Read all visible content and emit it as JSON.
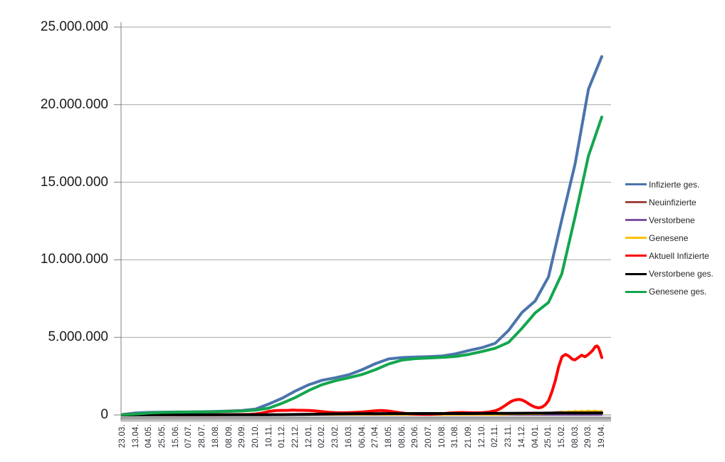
{
  "window": {
    "background_color": "#FFFFFF"
  },
  "chart_data": {
    "type": "line",
    "title": "",
    "xlabel": "",
    "ylabel": "",
    "unit": "persons (values stored in millions)",
    "grid": true,
    "legend_position": "right",
    "y_max_millions": 25,
    "y_tick_step_millions": 5,
    "y_tick_labels": [
      "25.000.000",
      "20.000.000",
      "15.000.000",
      "10.000.000",
      "5.000.000",
      "0"
    ],
    "x_tick_labels": [
      "23.03.",
      "13.04.",
      "04.05.",
      "25.05.",
      "15.06.",
      "07.07.",
      "28.07.",
      "18.08.",
      "08.09.",
      "29.09.",
      "20.10.",
      "10.11.",
      "01.12.",
      "22.12.",
      "12.01.",
      "02.02.",
      "23.02.",
      "16.03.",
      "06.04.",
      "27.04.",
      "18.05.",
      "08.06.",
      "29.06.",
      "20.07.",
      "10.08.",
      "31.08.",
      "21.09.",
      "12.10.",
      "02.11.",
      "23.11.",
      "14.12.",
      "04.01.",
      "25.01.",
      "15.02.",
      "08.03.",
      "29.03.",
      "19.04."
    ],
    "decor": {
      "grid_color": "#A6A6A6",
      "axis_color": "#808080",
      "tick_color": "#808080",
      "axis_band_gradient_top": "#8A8A8A",
      "axis_band_gradient_bottom": "#D9D9D9"
    },
    "series": [
      {
        "name": "Infizierte ges.",
        "color": "#4A74AC",
        "width": 4,
        "values_millions": [
          0.03,
          0.13,
          0.165,
          0.18,
          0.187,
          0.197,
          0.207,
          0.225,
          0.254,
          0.29,
          0.38,
          0.71,
          1.08,
          1.55,
          1.95,
          2.24,
          2.4,
          2.59,
          2.92,
          3.31,
          3.61,
          3.7,
          3.73,
          3.76,
          3.8,
          3.94,
          4.15,
          4.34,
          4.62,
          5.45,
          6.6,
          7.35,
          8.9,
          12.6,
          16.2,
          21.0,
          23.1
        ]
      },
      {
        "name": "Neuinfizierte",
        "color": "#9E473F",
        "width": 2.5,
        "points_millions": [
          [
            0,
            0.004
          ],
          [
            0.028,
            0.005
          ],
          [
            0.056,
            0.002
          ],
          [
            0.111,
            0.001
          ],
          [
            0.194,
            0.001
          ],
          [
            0.25,
            0.002
          ],
          [
            0.278,
            0.008
          ],
          [
            0.306,
            0.019
          ],
          [
            0.333,
            0.024
          ],
          [
            0.361,
            0.026
          ],
          [
            0.389,
            0.027
          ],
          [
            0.417,
            0.018
          ],
          [
            0.444,
            0.01
          ],
          [
            0.472,
            0.009
          ],
          [
            0.5,
            0.011
          ],
          [
            0.514,
            0.016
          ],
          [
            0.528,
            0.019
          ],
          [
            0.556,
            0.014
          ],
          [
            0.583,
            0.007
          ],
          [
            0.639,
            0.002
          ],
          [
            0.667,
            0.006
          ],
          [
            0.694,
            0.012
          ],
          [
            0.708,
            0.013
          ],
          [
            0.75,
            0.01
          ],
          [
            0.764,
            0.02
          ],
          [
            0.778,
            0.045
          ],
          [
            0.792,
            0.06
          ],
          [
            0.806,
            0.055
          ],
          [
            0.82,
            0.07
          ],
          [
            0.833,
            0.055
          ],
          [
            0.847,
            0.045
          ],
          [
            0.861,
            0.06
          ],
          [
            0.875,
            0.08
          ],
          [
            0.889,
            0.12
          ],
          [
            0.903,
            0.17
          ],
          [
            0.917,
            0.21
          ],
          [
            0.924,
            0.18
          ],
          [
            0.931,
            0.23
          ],
          [
            0.938,
            0.2
          ],
          [
            0.944,
            0.25
          ],
          [
            0.951,
            0.21
          ],
          [
            0.958,
            0.26
          ],
          [
            0.965,
            0.22
          ],
          [
            0.972,
            0.27
          ],
          [
            0.979,
            0.22
          ],
          [
            0.986,
            0.25
          ],
          [
            0.993,
            0.21
          ],
          [
            1,
            0.18
          ]
        ]
      },
      {
        "name": "Verstorbene",
        "color": "#7B519E",
        "width": 2.5,
        "points_millions": [
          [
            0,
            0.0002
          ],
          [
            0.3,
            0.0005
          ],
          [
            0.4,
            0.0009
          ],
          [
            0.5,
            0.0003
          ],
          [
            0.7,
            0.0002
          ],
          [
            0.85,
            0.0004
          ],
          [
            1,
            0.0003
          ]
        ]
      },
      {
        "name": "Genesene",
        "color": "#FFC000",
        "width": 2.5,
        "points_millions": [
          [
            0,
            0.002
          ],
          [
            0.028,
            0.006
          ],
          [
            0.056,
            0.004
          ],
          [
            0.111,
            0.001
          ],
          [
            0.222,
            0.001
          ],
          [
            0.278,
            0.004
          ],
          [
            0.306,
            0.015
          ],
          [
            0.333,
            0.022
          ],
          [
            0.361,
            0.025
          ],
          [
            0.389,
            0.028
          ],
          [
            0.417,
            0.022
          ],
          [
            0.444,
            0.012
          ],
          [
            0.5,
            0.012
          ],
          [
            0.528,
            0.018
          ],
          [
            0.556,
            0.015
          ],
          [
            0.583,
            0.009
          ],
          [
            0.639,
            0.003
          ],
          [
            0.694,
            0.008
          ],
          [
            0.722,
            0.01
          ],
          [
            0.75,
            0.008
          ],
          [
            0.778,
            0.015
          ],
          [
            0.806,
            0.035
          ],
          [
            0.833,
            0.06
          ],
          [
            0.847,
            0.05
          ],
          [
            0.861,
            0.055
          ],
          [
            0.875,
            0.06
          ],
          [
            0.889,
            0.09
          ],
          [
            0.903,
            0.14
          ],
          [
            0.917,
            0.2
          ],
          [
            0.924,
            0.17
          ],
          [
            0.931,
            0.24
          ],
          [
            0.938,
            0.21
          ],
          [
            0.944,
            0.26
          ],
          [
            0.951,
            0.22
          ],
          [
            0.958,
            0.27
          ],
          [
            0.965,
            0.23
          ],
          [
            0.972,
            0.28
          ],
          [
            0.979,
            0.24
          ],
          [
            0.986,
            0.28
          ],
          [
            0.993,
            0.23
          ],
          [
            1,
            0.26
          ]
        ]
      },
      {
        "name": "Aktuell Infizierte",
        "color": "#FF0000",
        "width": 4,
        "points_millions": [
          [
            0,
            0.01
          ],
          [
            0.014,
            0.04
          ],
          [
            0.028,
            0.062
          ],
          [
            0.042,
            0.045
          ],
          [
            0.056,
            0.028
          ],
          [
            0.083,
            0.013
          ],
          [
            0.111,
            0.007
          ],
          [
            0.139,
            0.006
          ],
          [
            0.167,
            0.009
          ],
          [
            0.194,
            0.016
          ],
          [
            0.222,
            0.021
          ],
          [
            0.25,
            0.026
          ],
          [
            0.264,
            0.035
          ],
          [
            0.278,
            0.065
          ],
          [
            0.292,
            0.13
          ],
          [
            0.306,
            0.23
          ],
          [
            0.319,
            0.28
          ],
          [
            0.333,
            0.295
          ],
          [
            0.347,
            0.3
          ],
          [
            0.356,
            0.315
          ],
          [
            0.365,
            0.3
          ],
          [
            0.375,
            0.3
          ],
          [
            0.389,
            0.285
          ],
          [
            0.399,
            0.27
          ],
          [
            0.41,
            0.235
          ],
          [
            0.417,
            0.21
          ],
          [
            0.431,
            0.175
          ],
          [
            0.444,
            0.15
          ],
          [
            0.458,
            0.14
          ],
          [
            0.472,
            0.15
          ],
          [
            0.486,
            0.165
          ],
          [
            0.5,
            0.19
          ],
          [
            0.514,
            0.23
          ],
          [
            0.528,
            0.27
          ],
          [
            0.538,
            0.285
          ],
          [
            0.549,
            0.27
          ],
          [
            0.556,
            0.25
          ],
          [
            0.569,
            0.19
          ],
          [
            0.583,
            0.13
          ],
          [
            0.597,
            0.08
          ],
          [
            0.611,
            0.055
          ],
          [
            0.625,
            0.042
          ],
          [
            0.639,
            0.038
          ],
          [
            0.653,
            0.055
          ],
          [
            0.667,
            0.085
          ],
          [
            0.681,
            0.12
          ],
          [
            0.694,
            0.148
          ],
          [
            0.708,
            0.16
          ],
          [
            0.722,
            0.15
          ],
          [
            0.736,
            0.14
          ],
          [
            0.75,
            0.145
          ],
          [
            0.764,
            0.185
          ],
          [
            0.778,
            0.27
          ],
          [
            0.785,
            0.36
          ],
          [
            0.792,
            0.48
          ],
          [
            0.799,
            0.62
          ],
          [
            0.806,
            0.77
          ],
          [
            0.813,
            0.9
          ],
          [
            0.82,
            0.97
          ],
          [
            0.827,
            1.0
          ],
          [
            0.833,
            0.97
          ],
          [
            0.84,
            0.87
          ],
          [
            0.847,
            0.73
          ],
          [
            0.854,
            0.6
          ],
          [
            0.861,
            0.5
          ],
          [
            0.868,
            0.46
          ],
          [
            0.875,
            0.5
          ],
          [
            0.882,
            0.65
          ],
          [
            0.889,
            0.92
          ],
          [
            0.896,
            1.5
          ],
          [
            0.903,
            2.2
          ],
          [
            0.91,
            3.1
          ],
          [
            0.917,
            3.75
          ],
          [
            0.924,
            3.9
          ],
          [
            0.931,
            3.8
          ],
          [
            0.938,
            3.6
          ],
          [
            0.944,
            3.55
          ],
          [
            0.951,
            3.7
          ],
          [
            0.958,
            3.85
          ],
          [
            0.965,
            3.75
          ],
          [
            0.972,
            3.9
          ],
          [
            0.979,
            4.1
          ],
          [
            0.983,
            4.25
          ],
          [
            0.986,
            4.4
          ],
          [
            0.99,
            4.45
          ],
          [
            0.993,
            4.35
          ],
          [
            0.996,
            4.1
          ],
          [
            1,
            3.7
          ]
        ]
      },
      {
        "name": "Verstorbene ges.",
        "color": "#000000",
        "width": 4,
        "points_millions": [
          [
            0,
            0.001
          ],
          [
            0.083,
            0.007
          ],
          [
            0.167,
            0.009
          ],
          [
            0.25,
            0.0095
          ],
          [
            0.306,
            0.0115
          ],
          [
            0.333,
            0.017
          ],
          [
            0.361,
            0.027
          ],
          [
            0.389,
            0.042
          ],
          [
            0.417,
            0.058
          ],
          [
            0.444,
            0.068
          ],
          [
            0.472,
            0.074
          ],
          [
            0.5,
            0.077
          ],
          [
            0.528,
            0.082
          ],
          [
            0.556,
            0.0865
          ],
          [
            0.583,
            0.0895
          ],
          [
            0.611,
            0.091
          ],
          [
            0.667,
            0.092
          ],
          [
            0.722,
            0.0942
          ],
          [
            0.75,
            0.0958
          ],
          [
            0.778,
            0.0995
          ],
          [
            0.806,
            0.107
          ],
          [
            0.833,
            0.1125
          ],
          [
            0.861,
            0.117
          ],
          [
            0.889,
            0.1205
          ],
          [
            0.917,
            0.1245
          ],
          [
            0.944,
            0.1285
          ],
          [
            0.972,
            0.1305
          ],
          [
            1,
            0.133
          ]
        ]
      },
      {
        "name": "Genesene ges.",
        "color": "#13A64E",
        "width": 4,
        "values_millions": [
          0.012,
          0.058,
          0.13,
          0.161,
          0.174,
          0.183,
          0.192,
          0.205,
          0.228,
          0.256,
          0.31,
          0.44,
          0.76,
          1.13,
          1.58,
          1.96,
          2.21,
          2.4,
          2.61,
          2.92,
          3.29,
          3.54,
          3.63,
          3.67,
          3.71,
          3.77,
          3.9,
          4.09,
          4.3,
          4.68,
          5.58,
          6.58,
          7.25,
          9.1,
          12.8,
          16.7,
          19.2
        ]
      }
    ]
  }
}
